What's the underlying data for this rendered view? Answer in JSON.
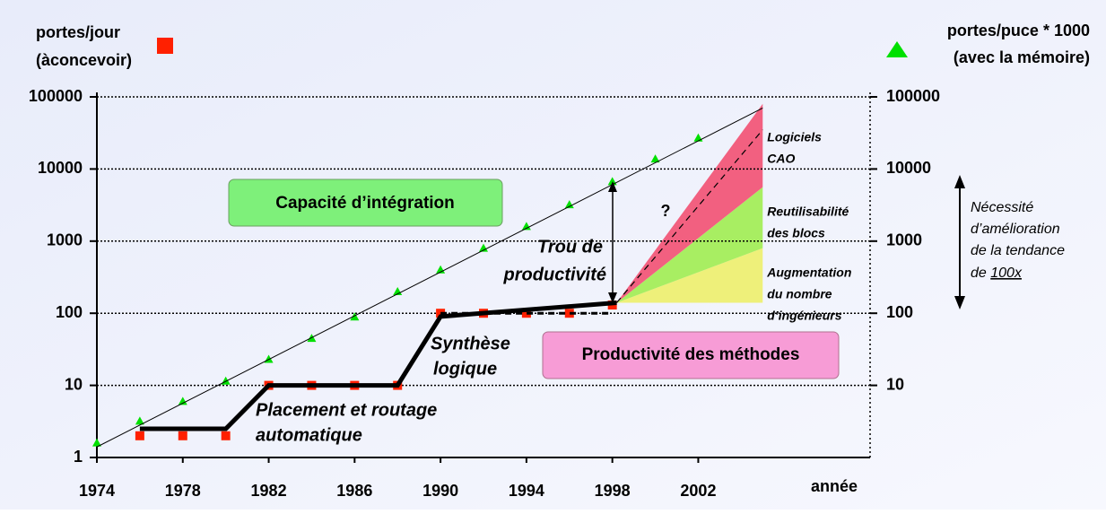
{
  "chart_data": {
    "type": "line",
    "ylog": true,
    "xlim": [
      1974,
      2010
    ],
    "xticks": [
      1974,
      1978,
      1982,
      1986,
      1990,
      1994,
      1998,
      2002
    ],
    "xlabel": "année",
    "ylim": [
      1,
      100000
    ],
    "yticks": [
      1,
      10,
      100,
      1000,
      10000,
      100000
    ],
    "y2lim": [
      1,
      100000
    ],
    "y2ticks": [
      10,
      100,
      1000,
      10000,
      100000
    ],
    "grid": true,
    "series": [
      {
        "name_lines": [
          "portes/puce * 1000",
          "(avec la mémoire)"
        ],
        "marker": "triangle",
        "color": "#00e000",
        "x": [
          1974,
          1976,
          1978,
          1980,
          1982,
          1984,
          1986,
          1988,
          1990,
          1992,
          1994,
          1996,
          1998,
          2000,
          2002
        ],
        "values": [
          1.6,
          3.2,
          6,
          11.5,
          23,
          45,
          89,
          200,
          400,
          800,
          1600,
          3200,
          6700,
          13800,
          27000
        ]
      },
      {
        "name_lines": [
          "portes/jour",
          "(àconcevoir)"
        ],
        "marker": "square",
        "color": "#ff2000",
        "x": [
          1976,
          1978,
          1980,
          1982,
          1984,
          1986,
          1988,
          1990,
          1992,
          1994,
          1996,
          1998
        ],
        "values": [
          2,
          2,
          2,
          10,
          10,
          10,
          10,
          100,
          100,
          100,
          100,
          130
        ]
      },
      {
        "marker": "none",
        "color": "#000000",
        "width": 1,
        "x": [
          1974,
          2005
        ],
        "values": [
          1.4,
          70000
        ]
      },
      {
        "marker": "none",
        "color": "#000000",
        "width": 5,
        "x": [
          1976,
          1980,
          1982,
          1988,
          1990,
          1998.2
        ],
        "values": [
          2.5,
          2.5,
          10,
          10,
          90,
          140
        ]
      },
      {
        "marker": "none",
        "color": "#000000",
        "width": 3,
        "dash": true,
        "x": [
          1990,
          1998
        ],
        "values": [
          100,
          100
        ]
      },
      {
        "marker": "none",
        "color": "#000000",
        "width": 1.2,
        "dash": true,
        "x": [
          1998.2,
          2005
        ],
        "values": [
          140,
          35000
        ]
      }
    ],
    "bands": [
      {
        "label_lines": [
          "Augmentation",
          "du nombre",
          "d’ingénieurs"
        ],
        "color": "#eef07a",
        "x": [
          1998.2,
          2005
        ],
        "lower": [
          140,
          140
        ],
        "upper": [
          140,
          800
        ]
      },
      {
        "label_lines": [
          "Reutilisabilité",
          "des blocs"
        ],
        "color": "#a8ee62",
        "x": [
          1998.2,
          2005
        ],
        "lower": [
          140,
          800
        ],
        "upper": [
          140,
          5600
        ]
      },
      {
        "label_lines": [
          "Logiciels",
          "CAO"
        ],
        "color": "#f26080",
        "x": [
          1998.2,
          2005
        ],
        "lower": [
          140,
          5600
        ],
        "upper": [
          140,
          80000
        ]
      }
    ],
    "box_capacity": "Capacité d’intégration",
    "box_productivity": "Productivité des méthodes",
    "gap_lines": [
      "Trou de",
      "productivité"
    ],
    "question": "?",
    "synthesis_lines": [
      "Synthèse",
      "logique"
    ],
    "placement_lines": [
      "Placement et routage",
      "automatique"
    ],
    "note_lines": [
      "Nécessité",
      "d’amélioration",
      "de la tendance"
    ],
    "note_last": "de",
    "note_underlined": "100x"
  }
}
